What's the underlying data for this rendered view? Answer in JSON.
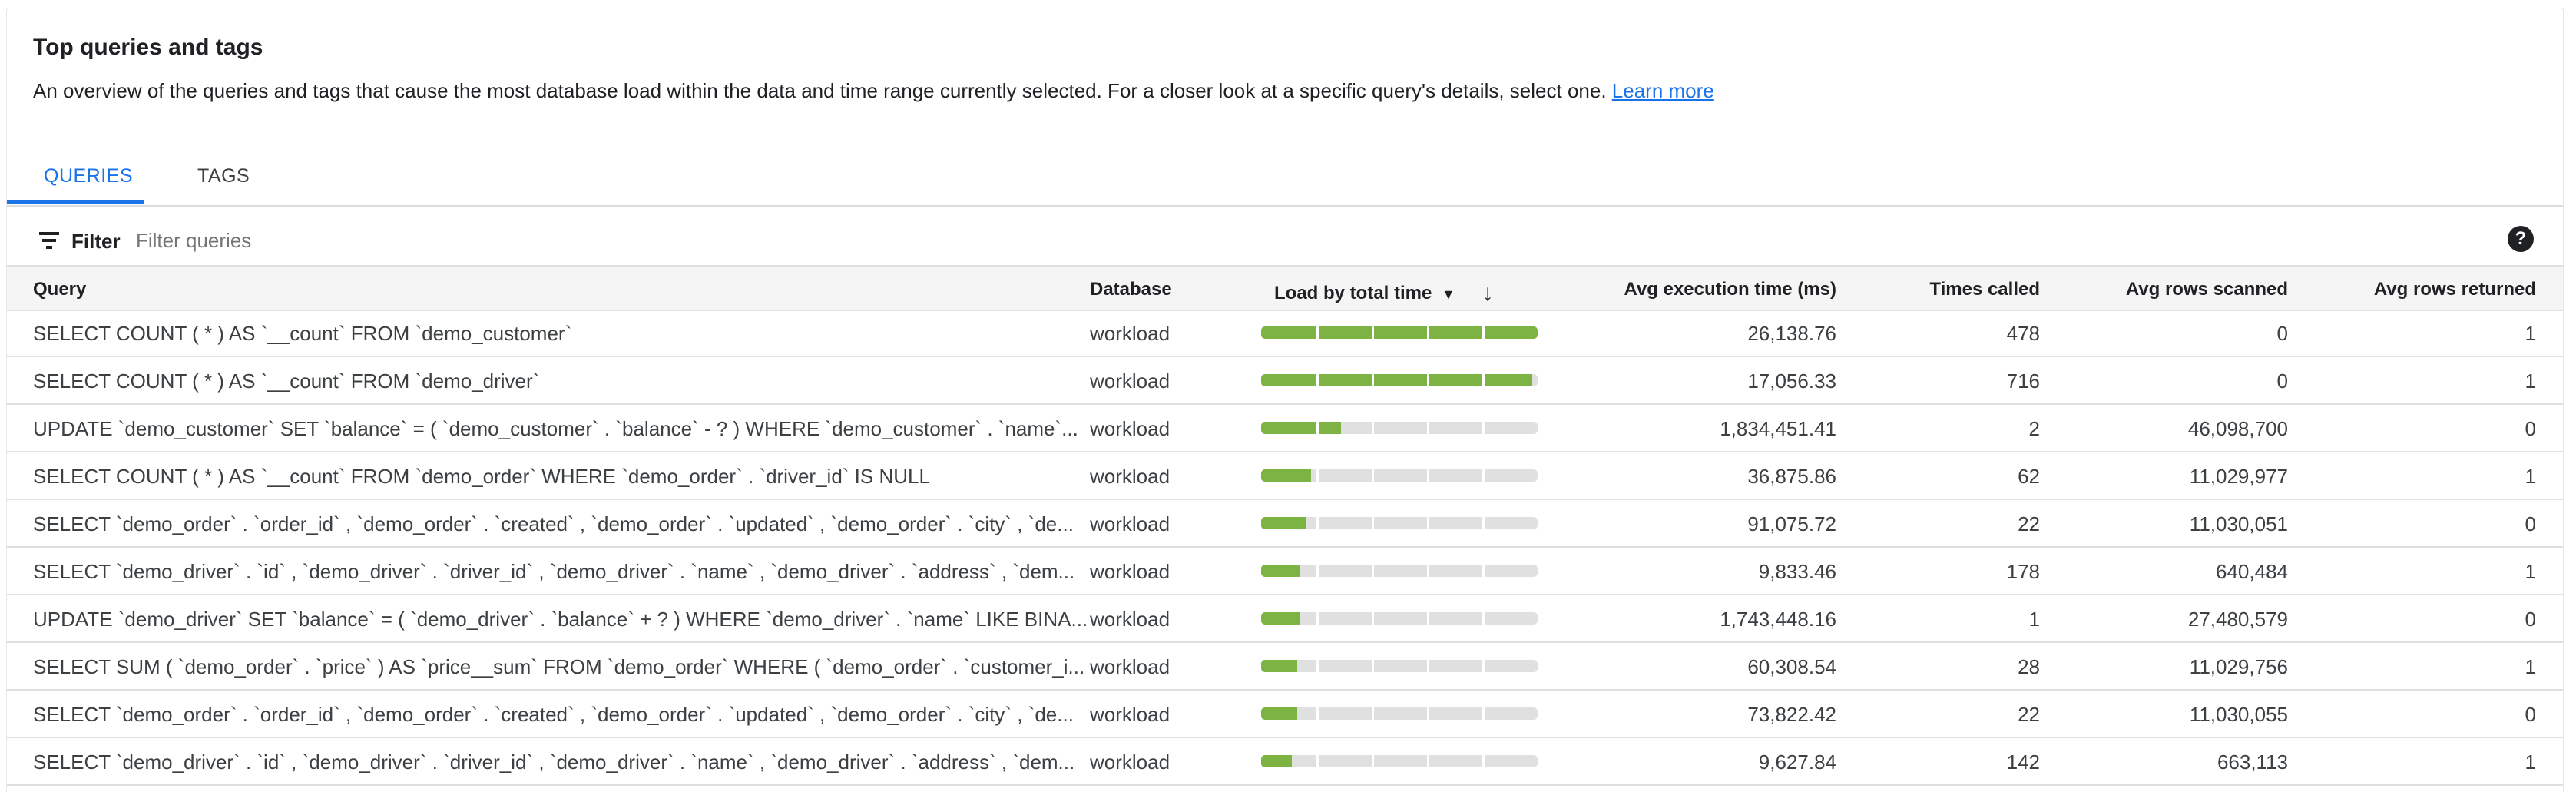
{
  "header": {
    "title": "Top queries and tags",
    "description": "An overview of the queries and tags that cause the most database load within the data and time range currently selected. For a closer look at a specific query's details, select one.",
    "learn_more": "Learn more"
  },
  "tabs": [
    {
      "label": "QUERIES",
      "active": true
    },
    {
      "label": "TAGS",
      "active": false
    }
  ],
  "filter": {
    "label": "Filter",
    "placeholder": "Filter queries",
    "value": "",
    "icon": "filter-icon",
    "help_icon": "help-icon",
    "help_glyph": "?"
  },
  "table": {
    "columns": {
      "query": "Query",
      "database": "Database",
      "load": "Load by total time",
      "load_sort_glyph": "▼",
      "sort_arrow": "↓",
      "avg_exec": "Avg execution time (ms)",
      "times_called": "Times called",
      "rows_scanned": "Avg rows scanned",
      "rows_returned": "Avg rows returned"
    },
    "colors": {
      "load_fill": "#7cb342",
      "load_track": "#e0e0e0"
    },
    "rows": [
      {
        "query": "SELECT COUNT ( * ) AS `__count` FROM `demo_customer`",
        "database": "workload",
        "load_fraction": 1.0,
        "avg_exec": "26,138.76",
        "times_called": "478",
        "rows_scanned": "0",
        "rows_returned": "1"
      },
      {
        "query": "SELECT COUNT ( * ) AS `__count` FROM `demo_driver`",
        "database": "workload",
        "load_fraction": 0.98,
        "avg_exec": "17,056.33",
        "times_called": "716",
        "rows_scanned": "0",
        "rows_returned": "1"
      },
      {
        "query": "UPDATE `demo_customer` SET `balance` = ( `demo_customer` . `balance` - ? ) WHERE `demo_customer` . `name`...",
        "database": "workload",
        "load_fraction": 0.29,
        "avg_exec": "1,834,451.41",
        "times_called": "2",
        "rows_scanned": "46,098,700",
        "rows_returned": "0"
      },
      {
        "query": "SELECT COUNT ( * ) AS `__count` FROM `demo_order` WHERE `demo_order` . `driver_id` IS NULL",
        "database": "workload",
        "load_fraction": 0.18,
        "avg_exec": "36,875.86",
        "times_called": "62",
        "rows_scanned": "11,029,977",
        "rows_returned": "1"
      },
      {
        "query": "SELECT `demo_order` . `order_id` , `demo_order` . `created` , `demo_order` . `updated` , `demo_order` . `city` , `de...",
        "database": "workload",
        "load_fraction": 0.16,
        "avg_exec": "91,075.72",
        "times_called": "22",
        "rows_scanned": "11,030,051",
        "rows_returned": "0"
      },
      {
        "query": "SELECT `demo_driver` . `id` , `demo_driver` . `driver_id` , `demo_driver` . `name` , `demo_driver` . `address` , `dem...",
        "database": "workload",
        "load_fraction": 0.14,
        "avg_exec": "9,833.46",
        "times_called": "178",
        "rows_scanned": "640,484",
        "rows_returned": "1"
      },
      {
        "query": "UPDATE `demo_driver` SET `balance` = ( `demo_driver` . `balance` + ? ) WHERE `demo_driver` . `name` LIKE BINA...",
        "database": "workload",
        "load_fraction": 0.14,
        "avg_exec": "1,743,448.16",
        "times_called": "1",
        "rows_scanned": "27,480,579",
        "rows_returned": "0"
      },
      {
        "query": "SELECT SUM ( `demo_order` . `price` ) AS `price__sum` FROM `demo_order` WHERE ( `demo_order` . `customer_i...",
        "database": "workload",
        "load_fraction": 0.13,
        "avg_exec": "60,308.54",
        "times_called": "28",
        "rows_scanned": "11,029,756",
        "rows_returned": "1"
      },
      {
        "query": "SELECT `demo_order` . `order_id` , `demo_order` . `created` , `demo_order` . `updated` , `demo_order` . `city` , `de...",
        "database": "workload",
        "load_fraction": 0.13,
        "avg_exec": "73,822.42",
        "times_called": "22",
        "rows_scanned": "11,030,055",
        "rows_returned": "0"
      },
      {
        "query": "SELECT `demo_driver` . `id` , `demo_driver` . `driver_id` , `demo_driver` . `name` , `demo_driver` . `address` , `dem...",
        "database": "workload",
        "load_fraction": 0.11,
        "avg_exec": "9,627.84",
        "times_called": "142",
        "rows_scanned": "663,113",
        "rows_returned": "1"
      }
    ]
  }
}
